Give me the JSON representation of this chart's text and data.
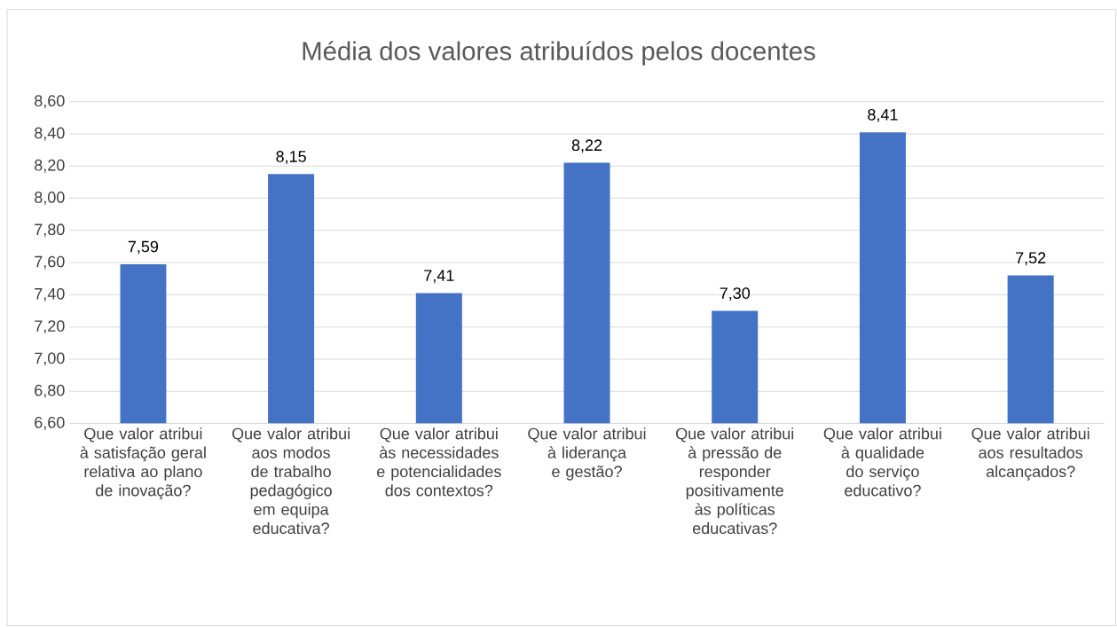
{
  "chart_data": {
    "type": "bar",
    "title": "Média dos valores atribuídos pelos docentes",
    "categories": [
      "Que valor atribui à satisfação geral relativa ao plano de inovação?",
      "Que valor atribui aos modos de trabalho pedagógico em equipa educativa?",
      "Que valor atribui às necessidades e potencialidades dos contextos?",
      "Que valor atribui à liderança e gestão?",
      "Que valor atribui à pressão de responder positivamente às políticas educativas?",
      "Que valor atribui à qualidade do serviço educativo?",
      "Que valor atribui aos resultados alcançados?"
    ],
    "values": [
      7.59,
      8.15,
      7.41,
      8.22,
      7.3,
      8.41,
      7.52
    ],
    "value_labels": [
      "7,59",
      "8,15",
      "7,41",
      "8,22",
      "7,30",
      "8,41",
      "7,52"
    ],
    "color": "#4472c4",
    "ylim": [
      6.6,
      8.6
    ],
    "yticks": [
      {
        "value": 6.6,
        "label": "6,60"
      },
      {
        "value": 6.8,
        "label": "6,80"
      },
      {
        "value": 7.0,
        "label": "7,00"
      },
      {
        "value": 7.2,
        "label": "7,20"
      },
      {
        "value": 7.4,
        "label": "7,40"
      },
      {
        "value": 7.6,
        "label": "7,60"
      },
      {
        "value": 7.8,
        "label": "7,80"
      },
      {
        "value": 8.0,
        "label": "8,00"
      },
      {
        "value": 8.2,
        "label": "8,20"
      },
      {
        "value": 8.4,
        "label": "8,40"
      },
      {
        "value": 8.6,
        "label": "8,60"
      }
    ],
    "grid": "y"
  }
}
